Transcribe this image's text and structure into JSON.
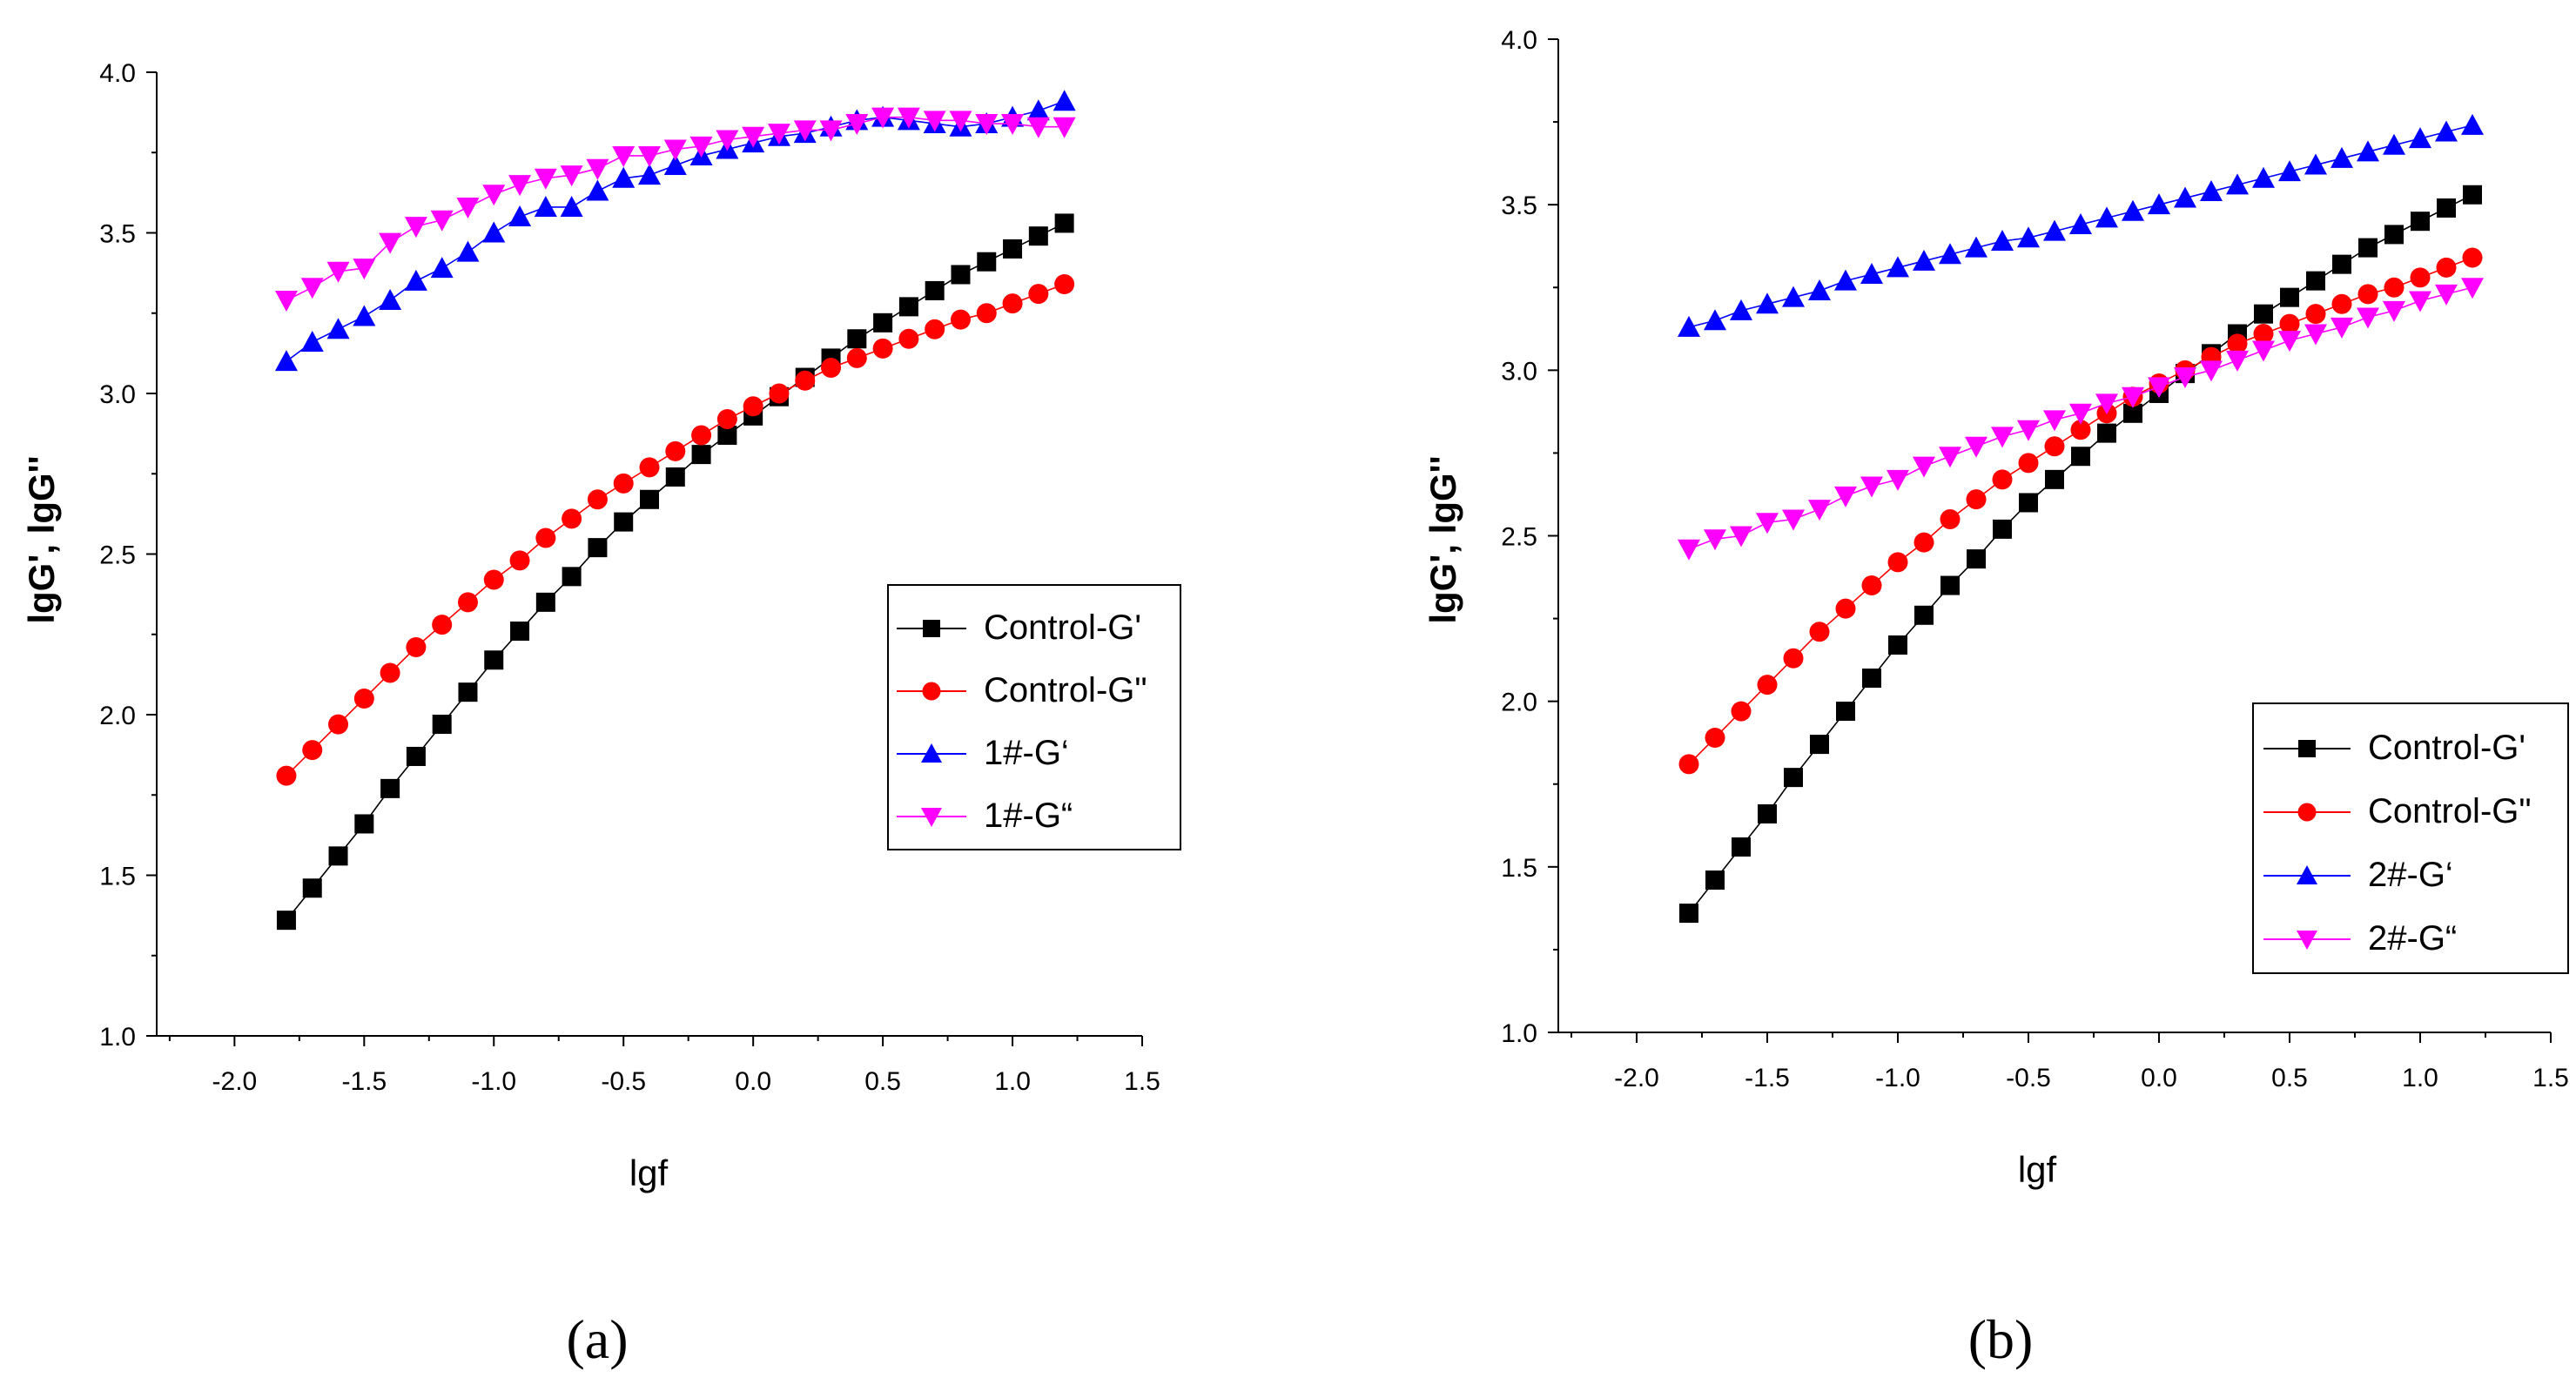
{
  "chart_data": [
    {
      "panel": "a",
      "type": "line",
      "xlabel": "lgf",
      "ylabel": "lgG', lgG''",
      "xlim": [
        -2.3,
        1.5
      ],
      "ylim": [
        1.0,
        4.0
      ],
      "xticks": [
        "-2.0",
        "-1.5",
        "-1.0",
        "-0.5",
        "0.0",
        "0.5",
        "1.0",
        "1.5"
      ],
      "xtick_values": [
        -2.0,
        -1.5,
        -1.0,
        -0.5,
        0.0,
        0.5,
        1.0,
        1.5
      ],
      "yticks": [
        "1.0",
        "1.5",
        "2.0",
        "2.5",
        "3.0",
        "3.5",
        "4.0"
      ],
      "ytick_values": [
        1.0,
        1.5,
        2.0,
        2.5,
        3.0,
        3.5,
        4.0
      ],
      "legend_position": "center-right",
      "x": [
        -1.8,
        -1.7,
        -1.6,
        -1.5,
        -1.4,
        -1.3,
        -1.2,
        -1.1,
        -1.0,
        -0.9,
        -0.8,
        -0.7,
        -0.6,
        -0.5,
        -0.4,
        -0.3,
        -0.2,
        -0.1,
        0.0,
        0.1,
        0.2,
        0.3,
        0.4,
        0.5,
        0.6,
        0.7,
        0.8,
        0.9,
        1.0,
        1.1,
        1.2
      ],
      "series": [
        {
          "name": "Control-G'",
          "color": "#000000",
          "marker": "square",
          "values": [
            1.36,
            1.46,
            1.56,
            1.66,
            1.77,
            1.87,
            1.97,
            2.07,
            2.17,
            2.26,
            2.35,
            2.43,
            2.52,
            2.6,
            2.67,
            2.74,
            2.81,
            2.87,
            2.93,
            2.99,
            3.05,
            3.11,
            3.17,
            3.22,
            3.27,
            3.32,
            3.37,
            3.41,
            3.45,
            3.49,
            3.53
          ]
        },
        {
          "name": "Control-G\"",
          "color": "#ff0000",
          "marker": "circle",
          "values": [
            1.81,
            1.89,
            1.97,
            2.05,
            2.13,
            2.21,
            2.28,
            2.35,
            2.42,
            2.48,
            2.55,
            2.61,
            2.67,
            2.72,
            2.77,
            2.82,
            2.87,
            2.92,
            2.96,
            3.0,
            3.04,
            3.08,
            3.11,
            3.14,
            3.17,
            3.2,
            3.23,
            3.25,
            3.28,
            3.31,
            3.34
          ]
        },
        {
          "name": "1#-G‘",
          "color": "#0000ff",
          "marker": "triangle-up",
          "values": [
            3.1,
            3.16,
            3.2,
            3.24,
            3.29,
            3.35,
            3.39,
            3.44,
            3.5,
            3.55,
            3.58,
            3.58,
            3.63,
            3.67,
            3.68,
            3.71,
            3.74,
            3.76,
            3.78,
            3.8,
            3.81,
            3.83,
            3.85,
            3.86,
            3.85,
            3.84,
            3.83,
            3.84,
            3.86,
            3.88,
            3.91
          ]
        },
        {
          "name": "1#-G“",
          "color": "#ff00ff",
          "marker": "triangle-down",
          "values": [
            3.29,
            3.33,
            3.38,
            3.39,
            3.47,
            3.52,
            3.54,
            3.58,
            3.62,
            3.65,
            3.67,
            3.68,
            3.7,
            3.74,
            3.74,
            3.76,
            3.77,
            3.79,
            3.8,
            3.81,
            3.82,
            3.82,
            3.84,
            3.86,
            3.86,
            3.85,
            3.85,
            3.84,
            3.84,
            3.83,
            3.83
          ]
        }
      ]
    },
    {
      "panel": "b",
      "type": "line",
      "xlabel": "lgf",
      "ylabel": "lgG', lgG''",
      "xlim": [
        -2.3,
        1.5
      ],
      "ylim": [
        1.0,
        4.0
      ],
      "xticks": [
        "-2.0",
        "-1.5",
        "-1.0",
        "-0.5",
        "0.0",
        "0.5",
        "1.0",
        "1.5"
      ],
      "xtick_values": [
        -2.0,
        -1.5,
        -1.0,
        -0.5,
        0.0,
        0.5,
        1.0,
        1.5
      ],
      "yticks": [
        "1.0",
        "1.5",
        "2.0",
        "2.5",
        "3.0",
        "3.5",
        "4.0"
      ],
      "ytick_values": [
        1.0,
        1.5,
        2.0,
        2.5,
        3.0,
        3.5,
        4.0
      ],
      "legend_position": "bottom-right",
      "x": [
        -1.8,
        -1.7,
        -1.6,
        -1.5,
        -1.4,
        -1.3,
        -1.2,
        -1.1,
        -1.0,
        -0.9,
        -0.8,
        -0.7,
        -0.6,
        -0.5,
        -0.4,
        -0.3,
        -0.2,
        -0.1,
        0.0,
        0.1,
        0.2,
        0.3,
        0.4,
        0.5,
        0.6,
        0.7,
        0.8,
        0.9,
        1.0,
        1.1,
        1.2
      ],
      "series": [
        {
          "name": "Control-G'",
          "color": "#000000",
          "marker": "square",
          "values": [
            1.36,
            1.46,
            1.56,
            1.66,
            1.77,
            1.87,
            1.97,
            2.07,
            2.17,
            2.26,
            2.35,
            2.43,
            2.52,
            2.6,
            2.67,
            2.74,
            2.81,
            2.87,
            2.93,
            2.99,
            3.05,
            3.11,
            3.17,
            3.22,
            3.27,
            3.32,
            3.37,
            3.41,
            3.45,
            3.49,
            3.53
          ]
        },
        {
          "name": "Control-G\"",
          "color": "#ff0000",
          "marker": "circle",
          "values": [
            1.81,
            1.89,
            1.97,
            2.05,
            2.13,
            2.21,
            2.28,
            2.35,
            2.42,
            2.48,
            2.55,
            2.61,
            2.67,
            2.72,
            2.77,
            2.82,
            2.87,
            2.92,
            2.96,
            3.0,
            3.04,
            3.08,
            3.11,
            3.14,
            3.17,
            3.2,
            3.23,
            3.25,
            3.28,
            3.31,
            3.34
          ]
        },
        {
          "name": "2#-G‘",
          "color": "#0000ff",
          "marker": "triangle-up",
          "values": [
            3.13,
            3.15,
            3.18,
            3.2,
            3.22,
            3.24,
            3.27,
            3.29,
            3.31,
            3.33,
            3.35,
            3.37,
            3.39,
            3.4,
            3.42,
            3.44,
            3.46,
            3.48,
            3.5,
            3.52,
            3.54,
            3.56,
            3.58,
            3.6,
            3.62,
            3.64,
            3.66,
            3.68,
            3.7,
            3.72,
            3.74
          ]
        },
        {
          "name": "2#-G“",
          "color": "#ff00ff",
          "marker": "triangle-down",
          "values": [
            2.46,
            2.49,
            2.5,
            2.54,
            2.55,
            2.58,
            2.62,
            2.65,
            2.67,
            2.71,
            2.74,
            2.77,
            2.8,
            2.82,
            2.85,
            2.87,
            2.9,
            2.92,
            2.95,
            2.98,
            3.0,
            3.03,
            3.06,
            3.09,
            3.11,
            3.13,
            3.16,
            3.18,
            3.21,
            3.23,
            3.25
          ]
        }
      ]
    }
  ],
  "panel_labels": {
    "a": "(a)",
    "b": "(b)"
  }
}
